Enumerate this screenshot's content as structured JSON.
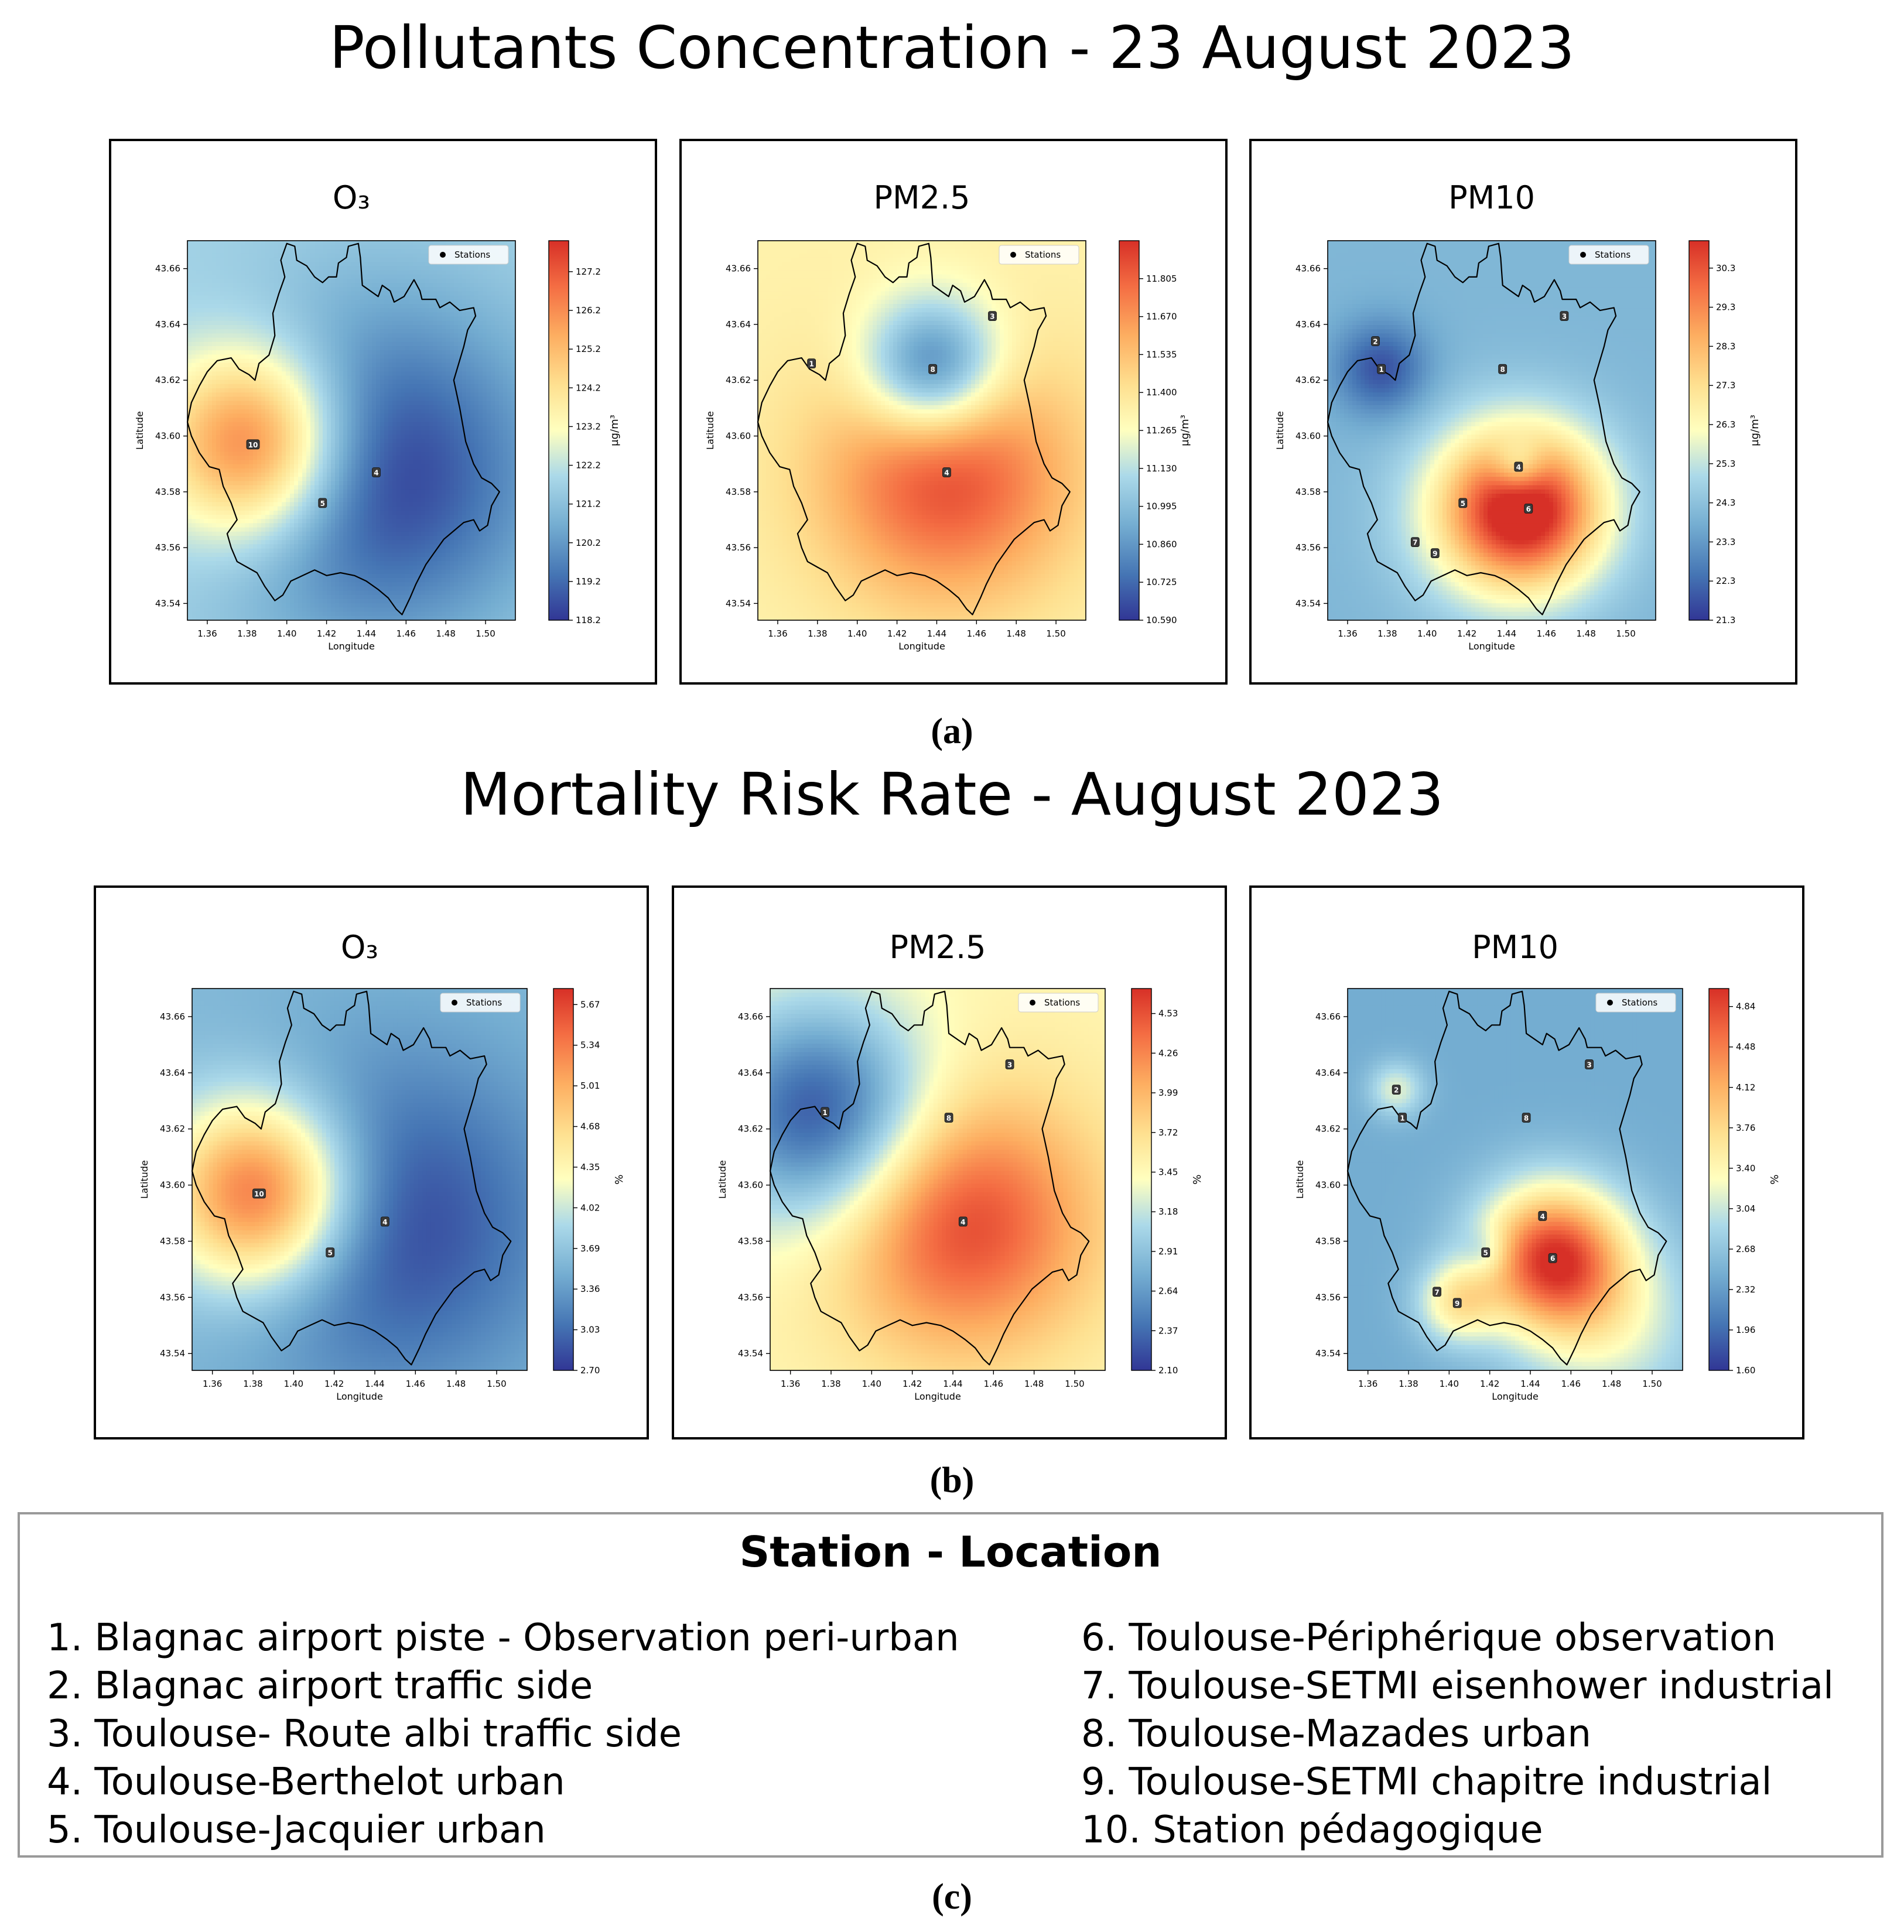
{
  "figure": {
    "title_a": "Pollutants Concentration - 23 August 2023",
    "label_a": "(a)",
    "title_b": "Mortality Risk Rate - August 2023",
    "label_b": "(b)",
    "label_c": "(c)"
  },
  "legend": {
    "title": "Station - Location",
    "col1": [
      "1. Blagnac airport piste  - Observation peri-urban",
      "2. Blagnac airport traffic side",
      "3. Toulouse- Route albi traffic side",
      "4. Toulouse-Berthelot urban",
      "5. Toulouse-Jacquier urban"
    ],
    "col2": [
      "6. Toulouse-Périphérique observation",
      "7. Toulouse-SETMI eisenhower industrial",
      "8. Toulouse-Mazades urban",
      "9. Toulouse-SETMI chapitre industrial",
      "10. Station pédagogique"
    ]
  },
  "colors": {
    "low": "#313695",
    "mid": "#ffffbf",
    "high": "#d73027"
  },
  "chart_data": [
    {
      "type": "heatmap",
      "title": "O₃",
      "group": "(a) Pollutants Concentration - 23 August 2023",
      "xlabel": "Longitude",
      "ylabel": "Latitude",
      "cbar_label": "µg/m³",
      "xlim": [
        1.35,
        1.515
      ],
      "ylim": [
        43.534,
        43.67
      ],
      "xticks": [
        "1.36",
        "1.38",
        "1.40",
        "1.42",
        "1.44",
        "1.46",
        "1.48",
        "1.50"
      ],
      "yticks": [
        "43.54",
        "43.56",
        "43.58",
        "43.60",
        "43.62",
        "43.64",
        "43.66"
      ],
      "cbar_ticks": [
        "118.2",
        "119.2",
        "120.2",
        "121.2",
        "122.2",
        "123.2",
        "124.2",
        "125.2",
        "126.2",
        "127.2"
      ],
      "vmin": 118.2,
      "vmax": 128.0,
      "base": 121.8,
      "sources": [
        {
          "lon": 1.383,
          "lat": 43.597,
          "amp": 6.0,
          "sig": 0.024
        },
        {
          "lon": 1.445,
          "lat": 43.587,
          "amp": -3.6,
          "sig": 0.042
        }
      ],
      "stations": [
        {
          "id": "10",
          "lon": 1.383,
          "lat": 43.597
        },
        {
          "id": "4",
          "lon": 1.445,
          "lat": 43.587
        },
        {
          "id": "5",
          "lon": 1.418,
          "lat": 43.576
        }
      ],
      "legend_label": "Stations"
    },
    {
      "type": "heatmap",
      "title": "PM2.5",
      "group": "(a) Pollutants Concentration - 23 August 2023",
      "xlabel": "Longitude",
      "ylabel": "Latitude",
      "cbar_label": "µg/m³",
      "xlim": [
        1.35,
        1.515
      ],
      "ylim": [
        43.534,
        43.67
      ],
      "xticks": [
        "1.36",
        "1.38",
        "1.40",
        "1.42",
        "1.44",
        "1.46",
        "1.48",
        "1.50"
      ],
      "yticks": [
        "43.54",
        "43.56",
        "43.58",
        "43.60",
        "43.62",
        "43.64",
        "43.66"
      ],
      "cbar_ticks": [
        "10.590",
        "10.725",
        "10.860",
        "10.995",
        "11.130",
        "11.265",
        "11.400",
        "11.535",
        "11.670",
        "11.805"
      ],
      "vmin": 10.59,
      "vmax": 11.94,
      "base": 11.33,
      "sources": [
        {
          "lon": 1.445,
          "lat": 43.587,
          "amp": 0.55,
          "sig": 0.032
        },
        {
          "lon": 1.438,
          "lat": 43.624,
          "amp": -0.7,
          "sig": 0.018
        }
      ],
      "stations": [
        {
          "id": "1",
          "lon": 1.377,
          "lat": 43.626
        },
        {
          "id": "8",
          "lon": 1.438,
          "lat": 43.624
        },
        {
          "id": "4",
          "lon": 1.445,
          "lat": 43.587
        },
        {
          "id": "3",
          "lon": 1.468,
          "lat": 43.643
        }
      ],
      "legend_label": "Stations"
    },
    {
      "type": "heatmap",
      "title": "PM10",
      "group": "(a) Pollutants Concentration - 23 August 2023",
      "xlabel": "Longitude",
      "ylabel": "Latitude",
      "cbar_label": "µg/m³",
      "xlim": [
        1.35,
        1.515
      ],
      "ylim": [
        43.534,
        43.67
      ],
      "xticks": [
        "1.36",
        "1.38",
        "1.40",
        "1.42",
        "1.44",
        "1.46",
        "1.48",
        "1.50"
      ],
      "yticks": [
        "43.54",
        "43.56",
        "43.58",
        "43.60",
        "43.62",
        "43.64",
        "43.66"
      ],
      "cbar_ticks": [
        "21.3",
        "22.3",
        "23.3",
        "24.3",
        "25.3",
        "26.3",
        "27.3",
        "28.3",
        "29.3",
        "30.3"
      ],
      "vmin": 21.3,
      "vmax": 31.0,
      "base": 24.0,
      "sources": [
        {
          "lon": 1.451,
          "lat": 43.574,
          "amp": 6.5,
          "sig": 0.02
        },
        {
          "lon": 1.43,
          "lat": 43.572,
          "amp": 2.0,
          "sig": 0.022
        },
        {
          "lon": 1.377,
          "lat": 43.624,
          "amp": -2.2,
          "sig": 0.012
        },
        {
          "lon": 1.446,
          "lat": 43.589,
          "amp": -2.4,
          "sig": 0.007
        }
      ],
      "stations": [
        {
          "id": "2",
          "lon": 1.374,
          "lat": 43.634
        },
        {
          "id": "1",
          "lon": 1.377,
          "lat": 43.624
        },
        {
          "id": "3",
          "lon": 1.469,
          "lat": 43.643
        },
        {
          "id": "8",
          "lon": 1.438,
          "lat": 43.624
        },
        {
          "id": "4",
          "lon": 1.446,
          "lat": 43.589
        },
        {
          "id": "5",
          "lon": 1.418,
          "lat": 43.576
        },
        {
          "id": "6",
          "lon": 1.451,
          "lat": 43.574
        },
        {
          "id": "7",
          "lon": 1.394,
          "lat": 43.562
        },
        {
          "id": "9",
          "lon": 1.404,
          "lat": 43.558
        }
      ],
      "legend_label": "Stations"
    },
    {
      "type": "heatmap",
      "title": "O₃",
      "group": "(b) Mortality Risk Rate - August 2023",
      "xlabel": "Longitude",
      "ylabel": "Latitude",
      "cbar_label": "%",
      "xlim": [
        1.35,
        1.515
      ],
      "ylim": [
        43.534,
        43.67
      ],
      "xticks": [
        "1.36",
        "1.38",
        "1.40",
        "1.42",
        "1.44",
        "1.46",
        "1.48",
        "1.50"
      ],
      "yticks": [
        "43.54",
        "43.56",
        "43.58",
        "43.60",
        "43.62",
        "43.64",
        "43.66"
      ],
      "cbar_ticks": [
        "2.70",
        "3.03",
        "3.36",
        "3.69",
        "4.02",
        "4.35",
        "4.68",
        "5.01",
        "5.34",
        "5.67"
      ],
      "vmin": 2.7,
      "vmax": 5.8,
      "base": 3.6,
      "sources": [
        {
          "lon": 1.383,
          "lat": 43.597,
          "amp": 2.1,
          "sig": 0.024
        },
        {
          "lon": 1.445,
          "lat": 43.587,
          "amp": -0.85,
          "sig": 0.042
        }
      ],
      "stations": [
        {
          "id": "10",
          "lon": 1.383,
          "lat": 43.597
        },
        {
          "id": "4",
          "lon": 1.445,
          "lat": 43.587
        },
        {
          "id": "5",
          "lon": 1.418,
          "lat": 43.576
        }
      ],
      "legend_label": "Stations"
    },
    {
      "type": "heatmap",
      "title": "PM2.5",
      "group": "(b) Mortality Risk Rate - August 2023",
      "xlabel": "Longitude",
      "ylabel": "Latitude",
      "cbar_label": "%",
      "xlim": [
        1.35,
        1.515
      ],
      "ylim": [
        43.534,
        43.67
      ],
      "xticks": [
        "1.36",
        "1.38",
        "1.40",
        "1.42",
        "1.44",
        "1.46",
        "1.48",
        "1.50"
      ],
      "yticks": [
        "43.54",
        "43.56",
        "43.58",
        "43.60",
        "43.62",
        "43.64",
        "43.66"
      ],
      "cbar_ticks": [
        "2.10",
        "2.37",
        "2.64",
        "2.91",
        "3.18",
        "3.45",
        "3.72",
        "3.99",
        "4.26",
        "4.53"
      ],
      "vmin": 2.1,
      "vmax": 4.7,
      "base": 3.5,
      "sources": [
        {
          "lon": 1.445,
          "lat": 43.587,
          "amp": 1.1,
          "sig": 0.032
        },
        {
          "lon": 1.375,
          "lat": 43.625,
          "amp": -1.3,
          "sig": 0.028
        }
      ],
      "stations": [
        {
          "id": "1",
          "lon": 1.377,
          "lat": 43.626
        },
        {
          "id": "8",
          "lon": 1.438,
          "lat": 43.624
        },
        {
          "id": "4",
          "lon": 1.445,
          "lat": 43.587
        },
        {
          "id": "3",
          "lon": 1.468,
          "lat": 43.643
        }
      ],
      "legend_label": "Stations"
    },
    {
      "type": "heatmap",
      "title": "PM10",
      "group": "(b) Mortality Risk Rate - August 2023",
      "xlabel": "Longitude",
      "ylabel": "Latitude",
      "cbar_label": "%",
      "xlim": [
        1.35,
        1.515
      ],
      "ylim": [
        43.534,
        43.67
      ],
      "xticks": [
        "1.36",
        "1.38",
        "1.40",
        "1.42",
        "1.44",
        "1.46",
        "1.48",
        "1.50"
      ],
      "yticks": [
        "43.54",
        "43.56",
        "43.58",
        "43.60",
        "43.62",
        "43.64",
        "43.66"
      ],
      "cbar_ticks": [
        "1.60",
        "1.96",
        "2.32",
        "2.68",
        "3.04",
        "3.40",
        "3.76",
        "4.12",
        "4.48",
        "4.84"
      ],
      "vmin": 1.6,
      "vmax": 5.0,
      "base": 2.45,
      "sources": [
        {
          "lon": 1.451,
          "lat": 43.574,
          "amp": 2.4,
          "sig": 0.018
        },
        {
          "lon": 1.404,
          "lat": 43.558,
          "amp": 1.0,
          "sig": 0.01
        },
        {
          "lon": 1.48,
          "lat": 43.55,
          "amp": 0.7,
          "sig": 0.022
        },
        {
          "lon": 1.374,
          "lat": 43.634,
          "amp": 0.7,
          "sig": 0.007
        },
        {
          "lon": 1.418,
          "lat": 43.576,
          "amp": -0.4,
          "sig": 0.006
        }
      ],
      "stations": [
        {
          "id": "2",
          "lon": 1.374,
          "lat": 43.634
        },
        {
          "id": "1",
          "lon": 1.377,
          "lat": 43.624
        },
        {
          "id": "3",
          "lon": 1.469,
          "lat": 43.643
        },
        {
          "id": "8",
          "lon": 1.438,
          "lat": 43.624
        },
        {
          "id": "4",
          "lon": 1.446,
          "lat": 43.589
        },
        {
          "id": "5",
          "lon": 1.418,
          "lat": 43.576
        },
        {
          "id": "6",
          "lon": 1.451,
          "lat": 43.574
        },
        {
          "id": "7",
          "lon": 1.394,
          "lat": 43.562
        },
        {
          "id": "9",
          "lon": 1.404,
          "lat": 43.558
        }
      ],
      "legend_label": "Stations"
    }
  ]
}
